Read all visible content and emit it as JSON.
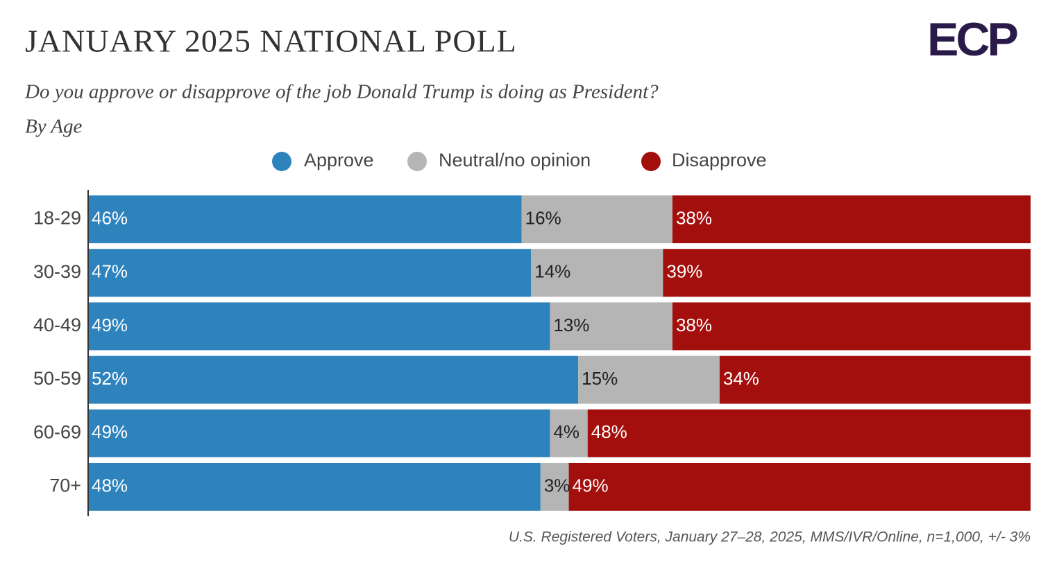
{
  "chart_data": {
    "type": "stacked-bar-horizontal",
    "title": "JANUARY 2025 NATIONAL POLL",
    "subtitle": "Do you approve or disapprove of the job Donald Trump is doing as President?",
    "subtitle2": "By Age",
    "logo": "ECP",
    "note": "U.S. Registered Voters, January 27–28, 2025, MMS/IVR/Online, n=1,000, +/- 3%",
    "categories": [
      "18-29",
      "30-39",
      "40-49",
      "50-59",
      "60-69",
      "70+"
    ],
    "xlim": [
      0,
      100
    ],
    "series": [
      {
        "name": "Approve",
        "color": "#2e83bd",
        "label_color": "#ffffff",
        "values": [
          46,
          47,
          49,
          52,
          49,
          48
        ],
        "value_labels": [
          "46%",
          "47%",
          "49%",
          "52%",
          "49%",
          "48%"
        ]
      },
      {
        "name": "Neutral/no opinion",
        "color": "#b5b5b5",
        "label_color": "#222222",
        "values": [
          16,
          14,
          13,
          15,
          4,
          3
        ],
        "value_labels": [
          "16%",
          "14%",
          "13%",
          "15%",
          "4%",
          "3%"
        ]
      },
      {
        "name": "Disapprove",
        "color": "#a30f0c",
        "label_color": "#ffffff",
        "values": [
          38,
          39,
          38,
          34,
          48,
          49
        ],
        "value_labels": [
          "38%",
          "39%",
          "38%",
          "34%",
          "48%",
          "49%"
        ]
      }
    ]
  }
}
